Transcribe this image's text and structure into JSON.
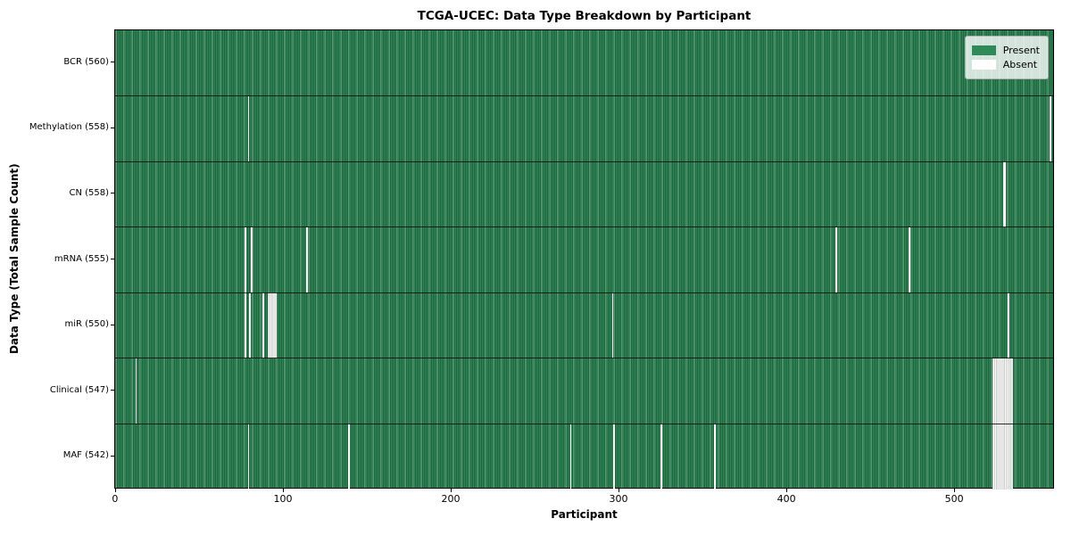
{
  "figure": {
    "title": "TCGA-UCEC: Data Type Breakdown by Participant",
    "xlabel": "Participant",
    "ylabel": "Data Type (Total Sample Count)"
  },
  "legend": {
    "items": [
      {
        "label": "Present",
        "color": "#2e8b57"
      },
      {
        "label": "Absent",
        "color": "#ffffff"
      }
    ]
  },
  "colors": {
    "present": "#2e8b57",
    "absent": "#ffffff",
    "row_separator": "#0a0f0a",
    "axis": "#000000",
    "legend_background": "#e9efe9"
  },
  "chart_data": {
    "type": "heatmap",
    "title": "TCGA-UCEC: Data Type Breakdown by Participant",
    "xlabel": "Participant",
    "ylabel": "Data Type (Total Sample Count)",
    "legend": [
      "Present",
      "Absent"
    ],
    "legend_position": "upper right",
    "grid": false,
    "n_participants": 560,
    "x_range": [
      0,
      560
    ],
    "x_ticks": [
      0,
      100,
      200,
      300,
      400,
      500
    ],
    "value_encoding": {
      "present": 1,
      "absent": 0
    },
    "rows": [
      {
        "label": "BCR (560)",
        "data_type": "BCR",
        "total_samples": 560,
        "absent_participants": []
      },
      {
        "label": "Methylation (558)",
        "data_type": "Methylation",
        "total_samples": 558,
        "absent_participants": [
          79,
          557
        ]
      },
      {
        "label": "CN (558)",
        "data_type": "CN",
        "total_samples": 558,
        "absent_participants": [
          529,
          530
        ]
      },
      {
        "label": "mRNA (555)",
        "data_type": "mRNA",
        "total_samples": 555,
        "absent_participants": [
          77,
          81,
          114,
          429,
          473
        ]
      },
      {
        "label": "miR (550)",
        "data_type": "miR",
        "total_samples": 550,
        "absent_participants": [
          77,
          80,
          88,
          91,
          92,
          93,
          94,
          95,
          296,
          532
        ]
      },
      {
        "label": "Clinical (547)",
        "data_type": "Clinical",
        "total_samples": 547,
        "absent_participants": [
          12,
          523,
          524,
          525,
          526,
          527,
          528,
          529,
          530,
          531,
          532,
          533,
          534
        ]
      },
      {
        "label": "MAF (542)",
        "data_type": "MAF",
        "total_samples": 542,
        "absent_participants": [
          79,
          139,
          271,
          297,
          325,
          357,
          523,
          524,
          525,
          526,
          527,
          528,
          529,
          530,
          531,
          532,
          533,
          534
        ]
      }
    ]
  }
}
